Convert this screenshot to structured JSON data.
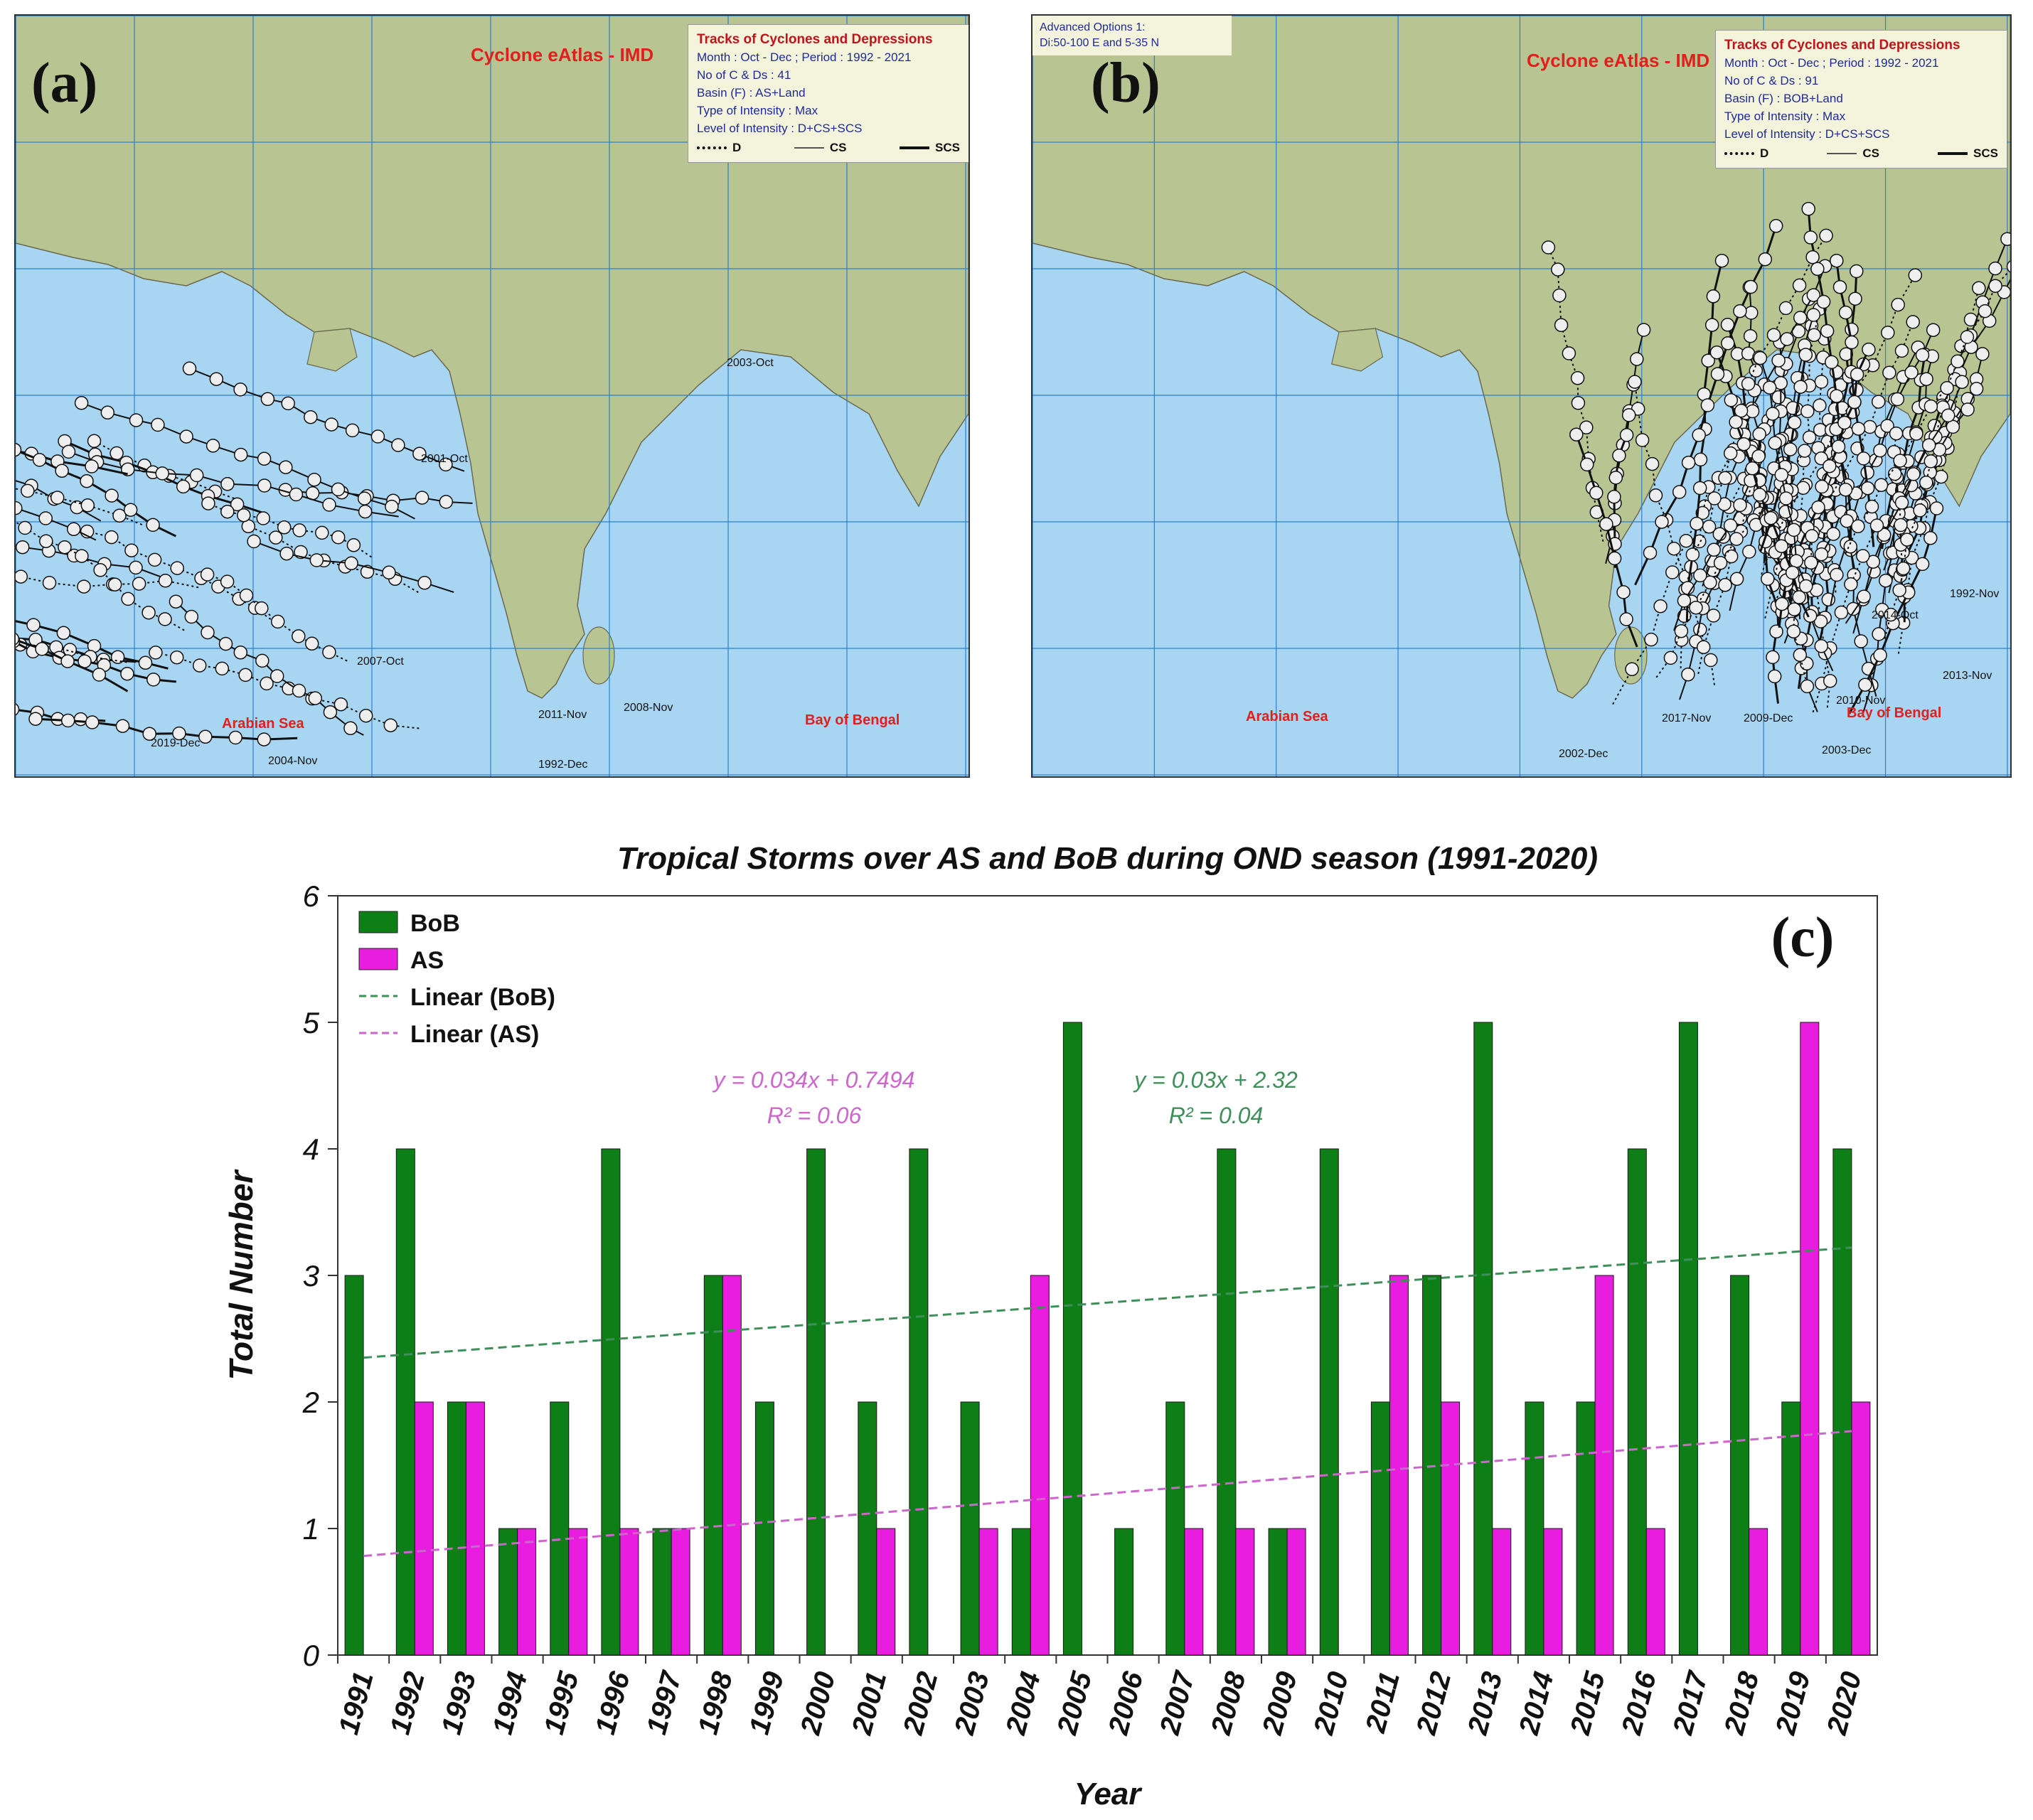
{
  "panels": [
    {
      "id": "a",
      "tag": "(a)",
      "atlas_title": "Cyclone eAtlas - IMD",
      "legend_title": "Tracks of Cyclones and Depressions",
      "legend_lines": [
        "Month  :  Oct - Dec ; Period  :  1992 - 2021",
        "No of C & Ds  :  41",
        "Basin (F)  :  AS+Land",
        "Type of Intensity  :  Max",
        "Level of Intensity  :  D+CS+SCS"
      ],
      "legend_keys": [
        "D",
        "CS",
        "SCS"
      ],
      "sea_labels": [
        "Arabian Sea",
        "Bay of Bengal"
      ],
      "track_labels": [
        "1992-Dec",
        "2004-Nov",
        "2019-Dec",
        "2008-Nov",
        "2011-Nov",
        "2003-Oct",
        "2007-Oct",
        "2001-Oct"
      ],
      "colors": {
        "land": "#b9c493",
        "sea": "#a8d6f2",
        "grid": "#2a7fd0"
      }
    },
    {
      "id": "b",
      "tag": "(b)",
      "atlas_title": "Cyclone eAtlas - IMD",
      "advanced": [
        "Advanced Options 1:",
        "Di:50-100 E and 5-35 N"
      ],
      "legend_title": "Tracks of Cyclones and Depressions",
      "legend_lines": [
        "Month  :  Oct - Dec ; Period  :  1992 - 2021",
        "No of C & Ds  :  91",
        "Basin (F)  :  BOB+Land",
        "Type of Intensity  :  Max",
        "Level of Intensity  :  D+CS+SCS"
      ],
      "legend_keys": [
        "D",
        "CS",
        "SCS"
      ],
      "sea_labels": [
        "Arabian Sea",
        "Bay of Bengal"
      ],
      "track_labels": [
        "2002-Dec",
        "2003-Dec",
        "2009-Dec",
        "2017-Nov",
        "1992-Nov",
        "2013-Nov",
        "2014-Oct",
        "2010-Nov"
      ],
      "colors": {
        "land": "#b9c493",
        "sea": "#a8d6f2",
        "grid": "#2a7fd0"
      }
    }
  ],
  "chart_data": {
    "type": "bar",
    "tag": "(c)",
    "title": "Tropical Storms over AS and BoB during OND season (1991-2020)",
    "xlabel": "Year",
    "ylabel": "Total Number",
    "ylim": [
      0,
      6
    ],
    "yticks": [
      0,
      1,
      2,
      3,
      4,
      5,
      6
    ],
    "categories": [
      "1991",
      "1992",
      "1993",
      "1994",
      "1995",
      "1996",
      "1997",
      "1998",
      "1999",
      "2000",
      "2001",
      "2002",
      "2003",
      "2004",
      "2005",
      "2006",
      "2007",
      "2008",
      "2009",
      "2010",
      "2011",
      "2012",
      "2013",
      "2014",
      "2015",
      "2016",
      "2017",
      "2018",
      "2019",
      "2020"
    ],
    "series": [
      {
        "name": "BoB",
        "color": "#0e7f17",
        "values": [
          3,
          4,
          2,
          1,
          2,
          4,
          1,
          3,
          2,
          4,
          2,
          4,
          2,
          1,
          5,
          1,
          2,
          4,
          1,
          4,
          2,
          3,
          5,
          2,
          2,
          4,
          5,
          3,
          2,
          4
        ]
      },
      {
        "name": "AS",
        "color": "#e81de0",
        "values": [
          0,
          2,
          2,
          1,
          1,
          1,
          1,
          3,
          0,
          0,
          1,
          0,
          1,
          3,
          0,
          0,
          1,
          1,
          1,
          0,
          3,
          2,
          1,
          1,
          3,
          1,
          0,
          1,
          5,
          2
        ]
      }
    ],
    "trendlines": [
      {
        "name": "Linear (BoB)",
        "color": "#3f8f5a",
        "slope": 0.03,
        "intercept": 2.32,
        "equation": "y = 0.03x + 2.32",
        "r2": "R² = 0.04"
      },
      {
        "name": "Linear (AS)",
        "color": "#cc66cc",
        "slope": 0.034,
        "intercept": 0.7494,
        "equation": "y = 0.034x + 0.7494",
        "r2": "R² = 0.06"
      }
    ],
    "legend_position": "top-left"
  }
}
